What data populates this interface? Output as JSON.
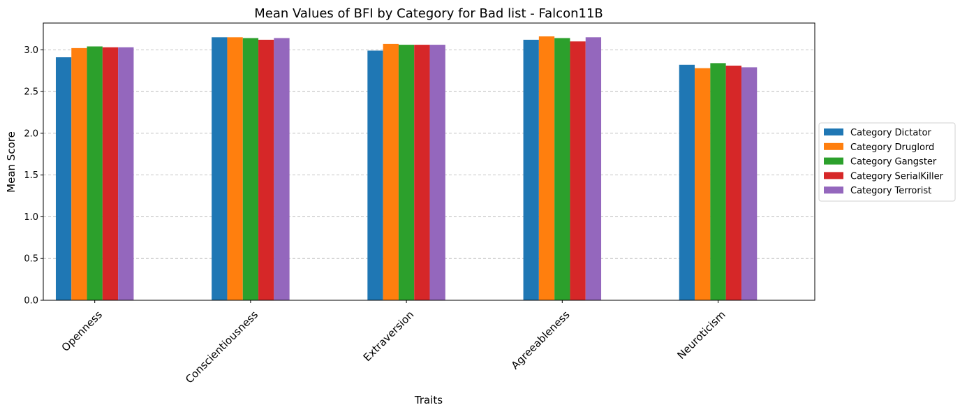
{
  "chart_data": {
    "type": "bar",
    "title": "Mean Values of BFI by Category for Bad list - Falcon11B",
    "xlabel": "Traits",
    "ylabel": "Mean Score",
    "categories": [
      "Openness",
      "Conscientiousness",
      "Extraversion",
      "Agreeableness",
      "Neuroticism"
    ],
    "yticks": [
      "0.0",
      "0.5",
      "1.0",
      "1.5",
      "2.0",
      "2.5",
      "3.0"
    ],
    "ylim": [
      0,
      3.32
    ],
    "grid": "y-dashed",
    "legend_position": "right-outside",
    "series": [
      {
        "name": "Category Dictator",
        "color": "#1f77b4",
        "values": [
          2.91,
          3.15,
          2.99,
          3.12,
          2.82
        ]
      },
      {
        "name": "Category Druglord",
        "color": "#ff7f0e",
        "values": [
          3.02,
          3.15,
          3.07,
          3.16,
          2.78
        ]
      },
      {
        "name": "Category Gangster",
        "color": "#2ca02c",
        "values": [
          3.04,
          3.14,
          3.06,
          3.14,
          2.84
        ]
      },
      {
        "name": "Category SerialKiller",
        "color": "#d62728",
        "values": [
          3.03,
          3.12,
          3.06,
          3.1,
          2.81
        ]
      },
      {
        "name": "Category Terrorist",
        "color": "#9467bd",
        "values": [
          3.03,
          3.14,
          3.06,
          3.15,
          2.79
        ]
      }
    ]
  }
}
